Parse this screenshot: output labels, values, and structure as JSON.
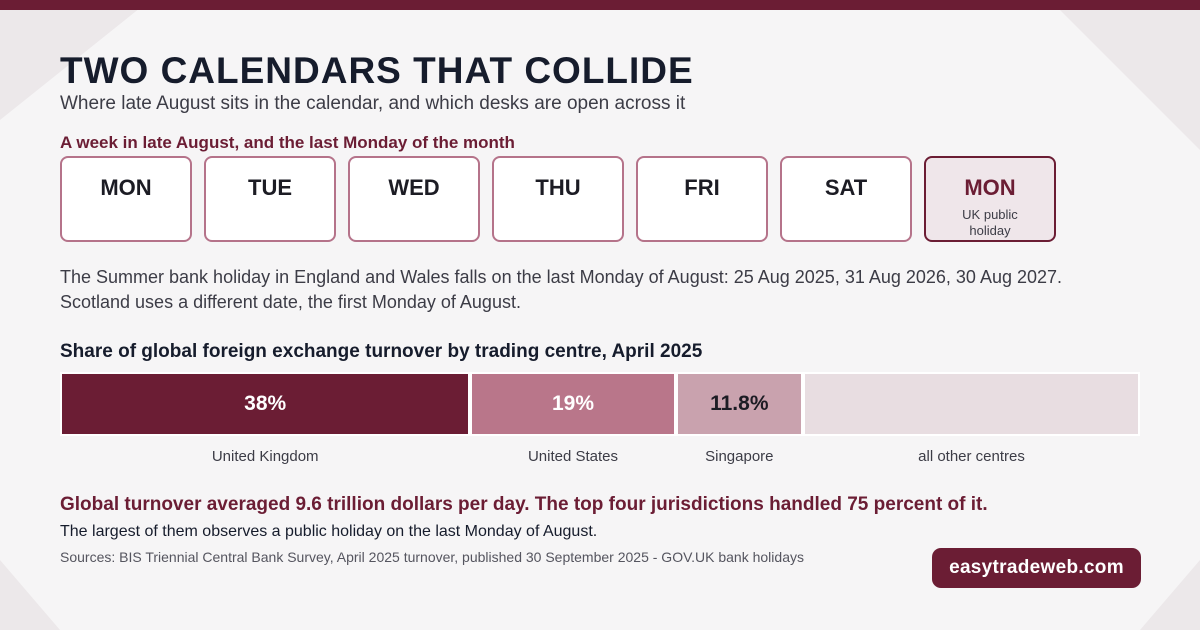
{
  "header": {
    "title": "TWO CALENDARS THAT COLLIDE",
    "subtitle": "Where late August sits in the calendar, and which desks are open across it"
  },
  "week": {
    "caption": "A week in late August, and the last Monday of the month",
    "days": [
      {
        "name": "MON",
        "note": ""
      },
      {
        "name": "TUE",
        "note": ""
      },
      {
        "name": "WED",
        "note": ""
      },
      {
        "name": "THU",
        "note": ""
      },
      {
        "name": "FRI",
        "note": ""
      },
      {
        "name": "SAT",
        "note": ""
      },
      {
        "name": "MON",
        "note": "UK public holiday"
      }
    ],
    "holiday_index": 6
  },
  "note": {
    "line1": "The Summer bank holiday in England and Wales falls on the last Monday of August: 25 Aug 2025, 31 Aug 2026, 30 Aug 2027.",
    "line2": "Scotland uses a different date, the first Monday of August."
  },
  "chart_data": {
    "type": "bar",
    "title": "Share of global foreign exchange turnover by trading centre, April 2025",
    "categories": [
      "United Kingdom",
      "United States",
      "Singapore",
      "all other centres"
    ],
    "values": [
      38,
      19,
      11.8,
      31.2
    ],
    "labels": [
      "38%",
      "19%",
      "11.8%",
      ""
    ],
    "colors": [
      "#6b1d34",
      "#b9768a",
      "#c9a2ae",
      "#e8dde1"
    ],
    "text_colors": [
      "#ffffff",
      "#ffffff",
      "#1c1c24",
      "#1c1c24"
    ],
    "ylim": [
      0,
      100
    ]
  },
  "footer": {
    "headline": "Global turnover averaged 9.6 trillion dollars per day. The top four jurisdictions handled 75 percent of it.",
    "subline": "The largest of them observes a public holiday on the last Monday of August.",
    "sources": "Sources: BIS Triennial Central Bank Survey, April 2025 turnover, published 30 September 2025 - GOV.UK bank holidays",
    "brand": "easytradeweb.com"
  },
  "colors": {
    "accent": "#6b1d34",
    "background": "#f6f5f6"
  }
}
